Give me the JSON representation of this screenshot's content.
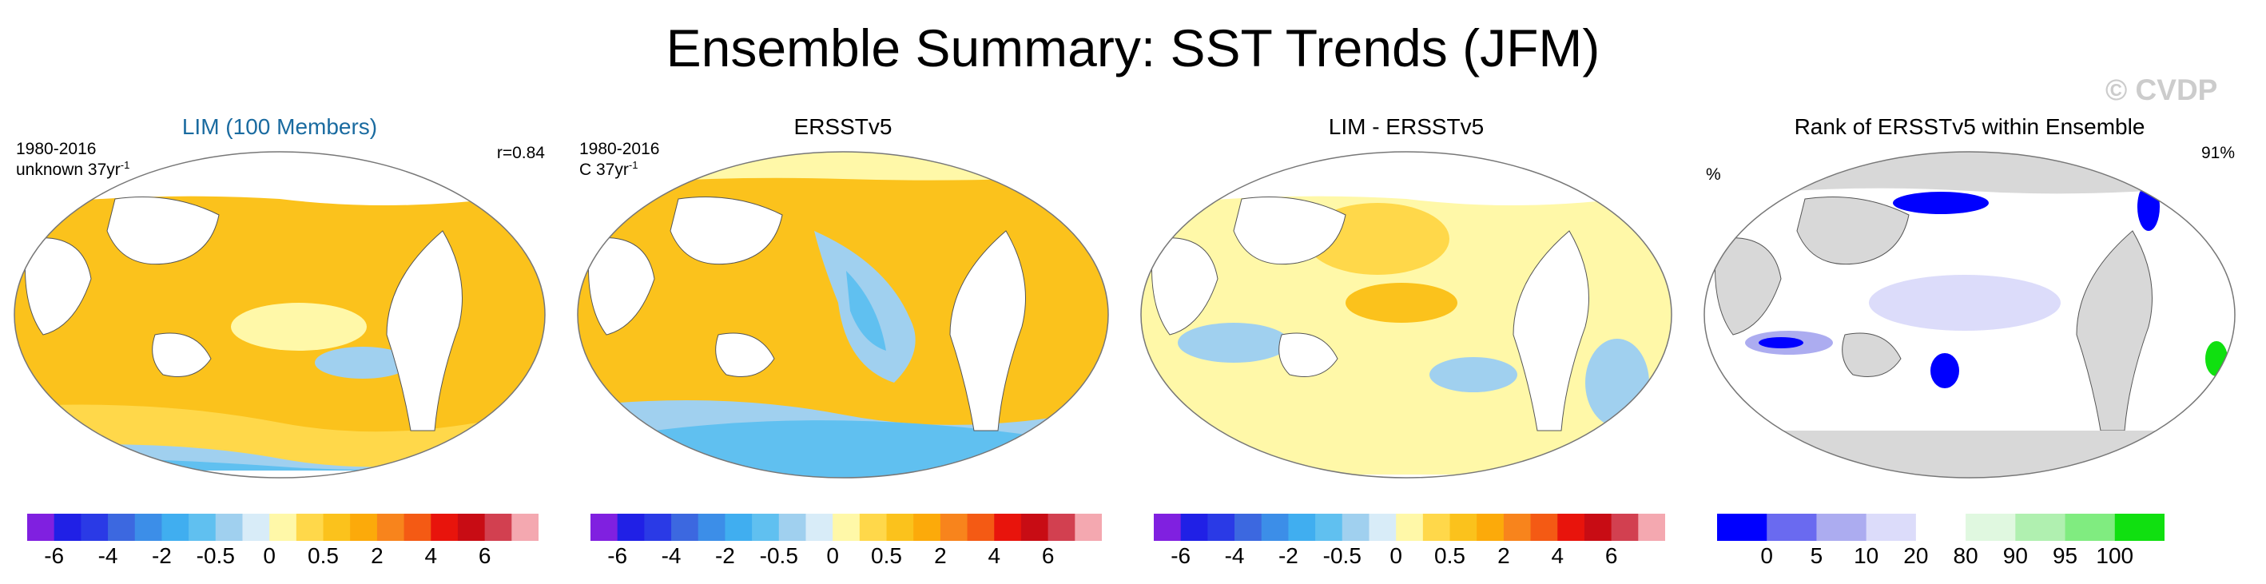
{
  "page_title": "Ensemble Summary: SST Trends (JFM)",
  "watermark": "© CVDP",
  "colors": {
    "trend_scale": [
      "#8020e0",
      "#2020e6",
      "#2a3ae6",
      "#3c68e0",
      "#3c8ee8",
      "#40aef0",
      "#60c0f0",
      "#a0d0ef",
      "#d8ecf8",
      "#fff8a8",
      "#ffd84a",
      "#fbc21c",
      "#fcaa0a",
      "#f8841c",
      "#f45a14",
      "#e8140c",
      "#c80c14",
      "#d24050",
      "#f4a8b0"
    ],
    "rank_scale": [
      "#0000ff",
      "#6a6af0",
      "#acacf0",
      "#dcdcfa",
      "#ffffff",
      "#e0f8e0",
      "#b0f0b0",
      "#80ec80",
      "#10e010"
    ],
    "land": "#ffffff",
    "land_rank": "#d8d8d8",
    "ocean_warm": "#fbc21c",
    "ocean_light": "#ffd84a",
    "ocean_pale": "#fff8a8",
    "ocean_cool": "#a0d0ef",
    "ocean_blue": "#60c0f0"
  },
  "chart_data": [
    {
      "type": "heatmap",
      "title": "LIM (100 Members)",
      "period": "1980-2016",
      "units": "unknown 37yr",
      "units_exp": "-1",
      "pattern_correlation": "r=0.84",
      "colorbar_ticks": [
        "-6",
        "-4",
        "-2",
        "-0.5",
        "0",
        "0.5",
        "2",
        "4",
        "6"
      ],
      "colorbar_levels": 19
    },
    {
      "type": "heatmap",
      "title": "ERSSTv5",
      "period": "1980-2016",
      "units": "C 37yr",
      "units_exp": "-1",
      "colorbar_ticks": [
        "-6",
        "-4",
        "-2",
        "-0.5",
        "0",
        "0.5",
        "2",
        "4",
        "6"
      ],
      "colorbar_levels": 19
    },
    {
      "type": "heatmap",
      "title": "LIM - ERSSTv5",
      "colorbar_ticks": [
        "-6",
        "-4",
        "-2",
        "-0.5",
        "0",
        "0.5",
        "2",
        "4",
        "6"
      ],
      "colorbar_levels": 19
    },
    {
      "type": "heatmap",
      "title": "Rank of ERSSTv5 within Ensemble",
      "units": "%",
      "percent_value": "91%",
      "colorbar_ticks": [
        "0",
        "5",
        "10",
        "20",
        "80",
        "90",
        "95",
        "100"
      ],
      "colorbar_levels": 9
    }
  ]
}
